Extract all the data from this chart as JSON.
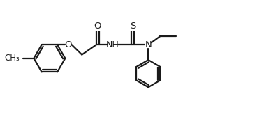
{
  "bg_color": "#ffffff",
  "line_color": "#1a1a1a",
  "line_width": 1.6,
  "fig_width": 3.88,
  "fig_height": 1.94,
  "dpi": 100,
  "xlim": [
    0,
    10
  ],
  "ylim": [
    0,
    5
  ]
}
